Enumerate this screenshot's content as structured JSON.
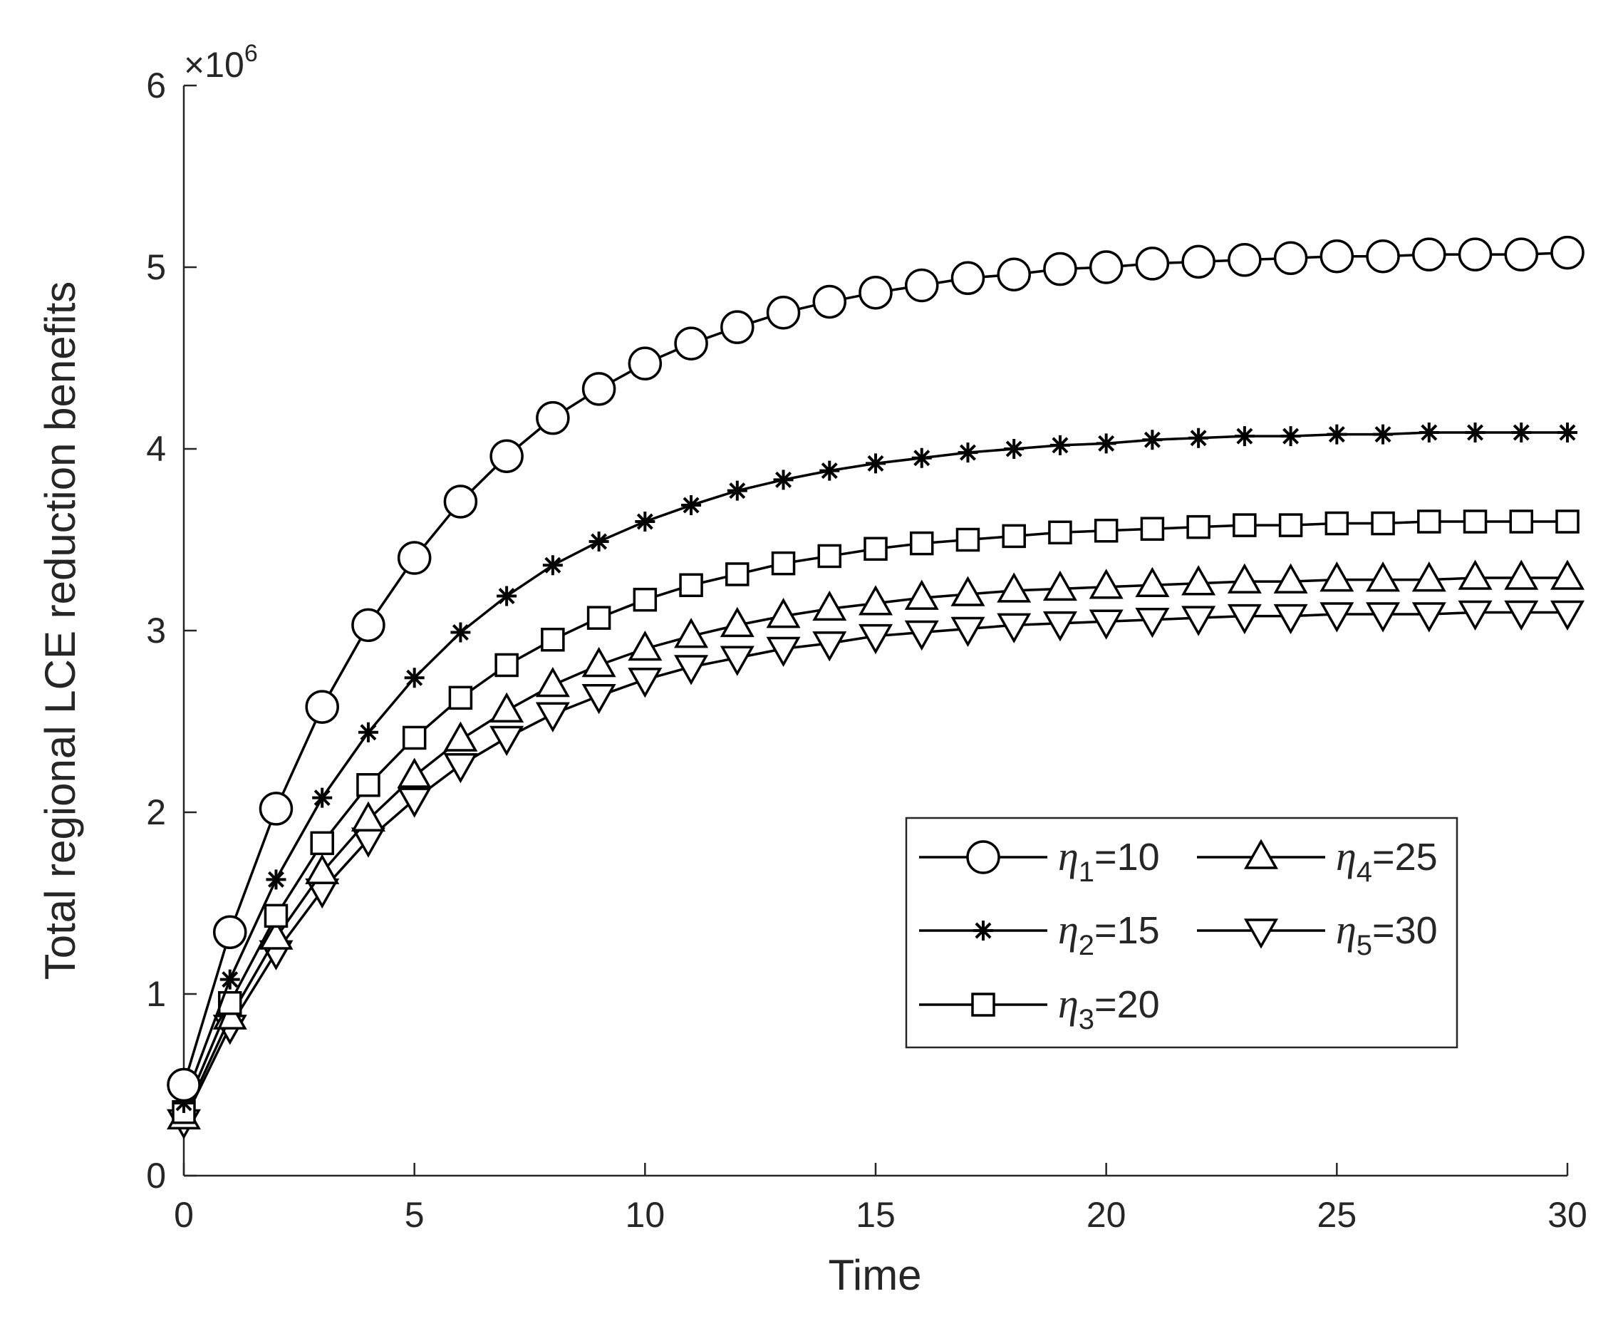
{
  "chart_data": {
    "type": "line",
    "title": "",
    "xlabel": "Time",
    "ylabel": "Total regional LCE reduction benefits",
    "y_multiplier_label": "×10",
    "y_multiplier_exponent": "6",
    "xlim": [
      0,
      30
    ],
    "ylim": [
      0,
      6
    ],
    "xticks": [
      0,
      5,
      10,
      15,
      20,
      25,
      30
    ],
    "yticks": [
      0,
      1,
      2,
      3,
      4,
      5,
      6
    ],
    "xtick_labels": [
      "0",
      "5",
      "10",
      "15",
      "20",
      "25",
      "30"
    ],
    "ytick_labels": [
      "0",
      "1",
      "2",
      "3",
      "4",
      "5",
      "6"
    ],
    "grid": false,
    "legend_position": "lower-right",
    "x": [
      0,
      1,
      2,
      3,
      4,
      5,
      6,
      7,
      8,
      9,
      10,
      11,
      12,
      13,
      14,
      15,
      16,
      17,
      18,
      19,
      20,
      21,
      22,
      23,
      24,
      25,
      26,
      27,
      28,
      29,
      30
    ],
    "series": [
      {
        "name": "η1=10",
        "eta": "η",
        "sub": "1",
        "value_text": "=10",
        "marker": "circle",
        "values": [
          0.5,
          1.34,
          2.02,
          2.58,
          3.03,
          3.4,
          3.71,
          3.96,
          4.17,
          4.33,
          4.47,
          4.58,
          4.67,
          4.75,
          4.81,
          4.86,
          4.9,
          4.94,
          4.96,
          4.99,
          5.0,
          5.02,
          5.03,
          5.04,
          5.05,
          5.06,
          5.06,
          5.07,
          5.07,
          5.07,
          5.08
        ]
      },
      {
        "name": "η2=15",
        "eta": "η",
        "sub": "2",
        "value_text": "=15",
        "marker": "asterisk",
        "values": [
          0.4,
          1.08,
          1.63,
          2.08,
          2.44,
          2.74,
          2.99,
          3.19,
          3.36,
          3.49,
          3.6,
          3.69,
          3.77,
          3.83,
          3.88,
          3.92,
          3.95,
          3.98,
          4.0,
          4.02,
          4.03,
          4.05,
          4.06,
          4.07,
          4.07,
          4.08,
          4.08,
          4.09,
          4.09,
          4.09,
          4.09
        ]
      },
      {
        "name": "η3=20",
        "eta": "η",
        "sub": "3",
        "value_text": "=20",
        "marker": "square",
        "values": [
          0.35,
          0.95,
          1.43,
          1.83,
          2.15,
          2.41,
          2.63,
          2.81,
          2.95,
          3.07,
          3.17,
          3.25,
          3.31,
          3.37,
          3.41,
          3.45,
          3.48,
          3.5,
          3.52,
          3.54,
          3.55,
          3.56,
          3.57,
          3.58,
          3.58,
          3.59,
          3.59,
          3.6,
          3.6,
          3.6,
          3.6
        ]
      },
      {
        "name": "η4=25",
        "eta": "η",
        "sub": "4",
        "value_text": "=25",
        "marker": "triangle-up",
        "values": [
          0.32,
          0.87,
          1.31,
          1.67,
          1.96,
          2.2,
          2.4,
          2.56,
          2.7,
          2.81,
          2.9,
          2.97,
          3.03,
          3.08,
          3.12,
          3.15,
          3.18,
          3.2,
          3.22,
          3.23,
          3.24,
          3.25,
          3.26,
          3.27,
          3.27,
          3.28,
          3.28,
          3.28,
          3.29,
          3.29,
          3.29
        ]
      },
      {
        "name": "η5=30",
        "eta": "η",
        "sub": "5",
        "value_text": "=30",
        "marker": "triangle-down",
        "values": [
          0.3,
          0.82,
          1.23,
          1.57,
          1.85,
          2.07,
          2.26,
          2.41,
          2.54,
          2.64,
          2.73,
          2.8,
          2.85,
          2.9,
          2.93,
          2.97,
          2.99,
          3.01,
          3.03,
          3.04,
          3.05,
          3.06,
          3.07,
          3.08,
          3.08,
          3.09,
          3.09,
          3.09,
          3.1,
          3.1,
          3.1
        ]
      }
    ]
  }
}
